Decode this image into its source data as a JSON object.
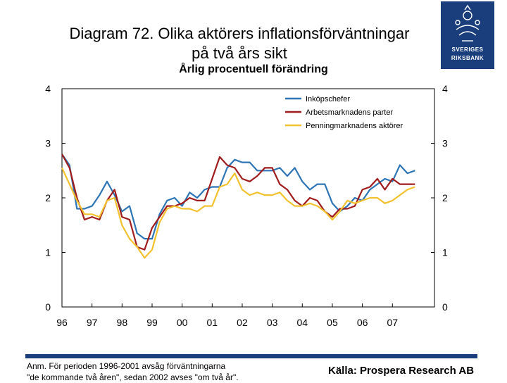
{
  "header": {
    "title_line1": "Diagram 72. Olika aktörers inflationsförväntningar",
    "title_line2": "på två års sikt",
    "subtitle": "Årlig procentuell förändring"
  },
  "logo": {
    "text_line1": "SVERIGES",
    "text_line2": "RIKSBANK"
  },
  "footer": {
    "note_line1": "Anm. För perioden 1996-2001 avsåg förväntningarna",
    "note_line2": "\"de kommande två åren\", sedan 2002 avses \"om två år\".",
    "source": "Källa: Prospera Research AB"
  },
  "chart_data": {
    "type": "line",
    "title": "Diagram 72. Olika aktörers inflationsförväntningar på två års sikt",
    "subtitle": "Årlig procentuell förändring",
    "xlim": [
      1996,
      2008.4
    ],
    "ylim": [
      0,
      4
    ],
    "yticks": [
      0,
      1,
      2,
      3,
      4
    ],
    "xticks": [
      1996,
      1997,
      1998,
      1999,
      2000,
      2001,
      2002,
      2003,
      2004,
      2005,
      2006,
      2007
    ],
    "xtick_labels": [
      "96",
      "97",
      "98",
      "99",
      "00",
      "01",
      "02",
      "03",
      "04",
      "05",
      "06",
      "07"
    ],
    "legend_position": "top-right",
    "series": [
      {
        "name": "Inköpschefer",
        "color": "#2e75b6",
        "x": [
          1996.0,
          1996.25,
          1996.5,
          1996.75,
          1997.0,
          1997.25,
          1997.5,
          1997.75,
          1998.0,
          1998.25,
          1998.5,
          1998.75,
          1999.0,
          1999.25,
          1999.5,
          1999.75,
          2000.0,
          2000.25,
          2000.5,
          2000.75,
          2001.0,
          2001.25,
          2001.5,
          2001.75,
          2002.0,
          2002.25,
          2002.5,
          2002.75,
          2003.0,
          2003.25,
          2003.5,
          2003.75,
          2004.0,
          2004.25,
          2004.5,
          2004.75,
          2005.0,
          2005.25,
          2005.5,
          2005.75,
          2006.0,
          2006.25,
          2006.5,
          2006.75,
          2007.0,
          2007.25,
          2007.5,
          2007.75
        ],
        "values": [
          2.8,
          2.6,
          1.8,
          1.8,
          1.85,
          2.05,
          2.3,
          2.05,
          1.75,
          1.85,
          1.35,
          1.25,
          1.25,
          1.7,
          1.95,
          2.0,
          1.85,
          2.1,
          2.0,
          2.15,
          2.2,
          2.2,
          2.55,
          2.7,
          2.65,
          2.65,
          2.5,
          2.5,
          2.5,
          2.55,
          2.4,
          2.55,
          2.3,
          2.15,
          2.25,
          2.25,
          1.9,
          1.75,
          1.85,
          2.0,
          1.95,
          2.15,
          2.25,
          2.35,
          2.3,
          2.6,
          2.45,
          2.5
        ]
      },
      {
        "name": "Arbetsmarknadens parter",
        "color": "#a01c1c",
        "x": [
          1996.0,
          1996.25,
          1996.5,
          1996.75,
          1997.0,
          1997.25,
          1997.5,
          1997.75,
          1998.0,
          1998.25,
          1998.5,
          1998.75,
          1999.0,
          1999.25,
          1999.5,
          1999.75,
          2000.0,
          2000.25,
          2000.5,
          2000.75,
          2001.0,
          2001.25,
          2001.5,
          2001.75,
          2002.0,
          2002.25,
          2002.5,
          2002.75,
          2003.0,
          2003.25,
          2003.5,
          2003.75,
          2004.0,
          2004.25,
          2004.5,
          2004.75,
          2005.0,
          2005.25,
          2005.5,
          2005.75,
          2006.0,
          2006.25,
          2006.5,
          2006.75,
          2007.0,
          2007.25,
          2007.5,
          2007.75
        ],
        "values": [
          2.8,
          2.55,
          2.0,
          1.6,
          1.65,
          1.6,
          1.95,
          2.15,
          1.65,
          1.6,
          1.1,
          1.05,
          1.45,
          1.65,
          1.85,
          1.85,
          1.9,
          2.0,
          1.95,
          1.95,
          2.35,
          2.75,
          2.6,
          2.55,
          2.35,
          2.3,
          2.4,
          2.55,
          2.55,
          2.25,
          2.15,
          1.95,
          1.85,
          2.0,
          1.95,
          1.75,
          1.65,
          1.8,
          1.8,
          1.85,
          2.15,
          2.2,
          2.35,
          2.15,
          2.35,
          2.25,
          2.25,
          2.25
        ]
      },
      {
        "name": "Penningmarknadens aktörer",
        "color": "#f2c12e",
        "x": [
          1996.0,
          1996.25,
          1996.5,
          1996.75,
          1997.0,
          1997.25,
          1997.5,
          1997.75,
          1998.0,
          1998.25,
          1998.5,
          1998.75,
          1999.0,
          1999.25,
          1999.5,
          1999.75,
          2000.0,
          2000.25,
          2000.5,
          2000.75,
          2001.0,
          2001.25,
          2001.5,
          2001.75,
          2002.0,
          2002.25,
          2002.5,
          2002.75,
          2003.0,
          2003.25,
          2003.5,
          2003.75,
          2004.0,
          2004.25,
          2004.5,
          2004.75,
          2005.0,
          2005.25,
          2005.5,
          2005.75,
          2006.0,
          2006.25,
          2006.5,
          2006.75,
          2007.0,
          2007.25,
          2007.5,
          2007.75
        ],
        "values": [
          2.55,
          2.25,
          1.95,
          1.7,
          1.7,
          1.65,
          1.95,
          2.0,
          1.5,
          1.25,
          1.1,
          0.9,
          1.05,
          1.55,
          1.8,
          1.85,
          1.8,
          1.8,
          1.75,
          1.85,
          1.85,
          2.2,
          2.25,
          2.45,
          2.15,
          2.05,
          2.1,
          2.05,
          2.05,
          2.1,
          1.95,
          1.85,
          1.85,
          1.9,
          1.85,
          1.75,
          1.6,
          1.75,
          1.95,
          1.9,
          1.95,
          2.0,
          2.0,
          1.9,
          1.95,
          2.05,
          2.15,
          2.2
        ]
      }
    ]
  }
}
